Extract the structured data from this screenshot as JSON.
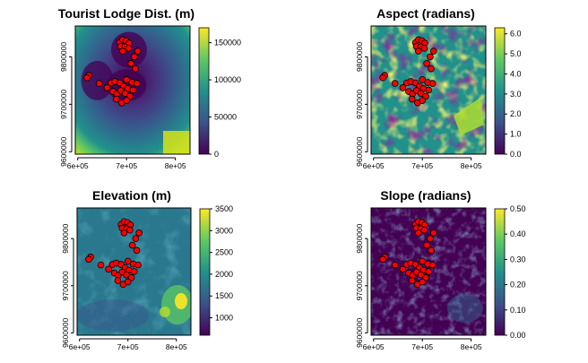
{
  "figure": {
    "chart_data": [
      {
        "type": "heatmap",
        "title": "Tourist Lodge Dist. (m)",
        "palette": "viridis",
        "palette_colors": [
          "#440154",
          "#3b528b",
          "#21918c",
          "#5ec962",
          "#fde725"
        ],
        "xlim": [
          595000,
          830000
        ],
        "ylim": [
          9595000,
          9865000
        ],
        "x_ticks": [
          600000,
          700000,
          800000
        ],
        "x_tick_labels": [
          "6e+05",
          "7e+05",
          "8e+05"
        ],
        "y_ticks": [
          9600000,
          9700000,
          9800000
        ],
        "y_tick_labels": [
          "9600000",
          "9700000",
          "9800000"
        ],
        "legend": {
          "min": 0,
          "max": 170000,
          "ticks": [
            0,
            50000,
            100000,
            150000
          ],
          "tick_labels": [
            "0",
            "50000",
            "100000",
            "150000"
          ]
        }
      },
      {
        "type": "heatmap",
        "title": "Aspect (radians)",
        "palette": "viridis",
        "palette_colors": [
          "#440154",
          "#3b528b",
          "#21918c",
          "#5ec962",
          "#fde725"
        ],
        "xlim": [
          595000,
          830000
        ],
        "ylim": [
          9595000,
          9865000
        ],
        "x_ticks": [
          600000,
          700000,
          800000
        ],
        "x_tick_labels": [
          "6e+05",
          "7e+05",
          "8e+05"
        ],
        "y_ticks": [
          9600000,
          9700000,
          9800000
        ],
        "y_tick_labels": [
          "9600000",
          "9700000",
          "9800000"
        ],
        "legend": {
          "min": 0,
          "max": 6.3,
          "ticks": [
            0,
            1,
            2,
            3,
            4,
            5,
            6
          ],
          "tick_labels": [
            "0.0",
            "1.0",
            "2.0",
            "3.0",
            "4.0",
            "5.0",
            "6.0"
          ]
        }
      },
      {
        "type": "heatmap",
        "title": "Elevation (m)",
        "palette": "viridis",
        "palette_colors": [
          "#440154",
          "#3b528b",
          "#21918c",
          "#5ec962",
          "#fde725"
        ],
        "xlim": [
          595000,
          830000
        ],
        "ylim": [
          9595000,
          9865000
        ],
        "x_ticks": [
          600000,
          700000,
          800000
        ],
        "x_tick_labels": [
          "6e+05",
          "7e+05",
          "8e+05"
        ],
        "y_ticks": [
          9600000,
          9700000,
          9800000
        ],
        "y_tick_labels": [
          "9600000",
          "9700000",
          "9800000"
        ],
        "legend": {
          "min": 600,
          "max": 3500,
          "ticks": [
            1000,
            1500,
            2000,
            2500,
            3000,
            3500
          ],
          "tick_labels": [
            "1000",
            "1500",
            "2000",
            "2500",
            "3000",
            "3500"
          ]
        }
      },
      {
        "type": "heatmap",
        "title": "Slope (radians)",
        "palette": "viridis",
        "palette_colors": [
          "#440154",
          "#3b528b",
          "#21918c",
          "#5ec962",
          "#fde725"
        ],
        "xlim": [
          595000,
          830000
        ],
        "ylim": [
          9595000,
          9865000
        ],
        "x_ticks": [
          600000,
          700000,
          800000
        ],
        "x_tick_labels": [
          "6e+05",
          "7e+05",
          "8e+05"
        ],
        "y_ticks": [
          9600000,
          9700000,
          9800000
        ],
        "y_tick_labels": [
          "9600000",
          "9700000",
          "9800000"
        ],
        "legend": {
          "min": 0,
          "max": 0.5,
          "ticks": [
            0,
            0.1,
            0.2,
            0.3,
            0.4,
            0.5
          ],
          "tick_labels": [
            "0.00",
            "0.10",
            "0.20",
            "0.30",
            "0.40",
            "0.50"
          ]
        }
      }
    ],
    "points": {
      "fill_color": "#ff0000",
      "stroke_color": "#000000",
      "coords": [
        [
          686000,
          9830000
        ],
        [
          692000,
          9836000
        ],
        [
          699000,
          9834000
        ],
        [
          705000,
          9829000
        ],
        [
          688000,
          9822000
        ],
        [
          697000,
          9821000
        ],
        [
          704000,
          9818000
        ],
        [
          692000,
          9812000
        ],
        [
          716000,
          9800000
        ],
        [
          723000,
          9812000
        ],
        [
          709000,
          9786000
        ],
        [
          718000,
          9775000
        ],
        [
          623000,
          9761000
        ],
        [
          619000,
          9756000
        ],
        [
          644000,
          9744000
        ],
        [
          660000,
          9735000
        ],
        [
          668000,
          9745000
        ],
        [
          676000,
          9748000
        ],
        [
          686000,
          9745000
        ],
        [
          700000,
          9752000
        ],
        [
          711000,
          9746000
        ],
        [
          721000,
          9744000
        ],
        [
          694000,
          9738000
        ],
        [
          702000,
          9733000
        ],
        [
          713000,
          9730000
        ],
        [
          672000,
          9727000
        ],
        [
          680000,
          9722000
        ],
        [
          688000,
          9729000
        ],
        [
          697000,
          9723000
        ],
        [
          707000,
          9717000
        ],
        [
          679000,
          9711000
        ],
        [
          690000,
          9703000
        ],
        [
          700000,
          9708000
        ]
      ]
    }
  }
}
